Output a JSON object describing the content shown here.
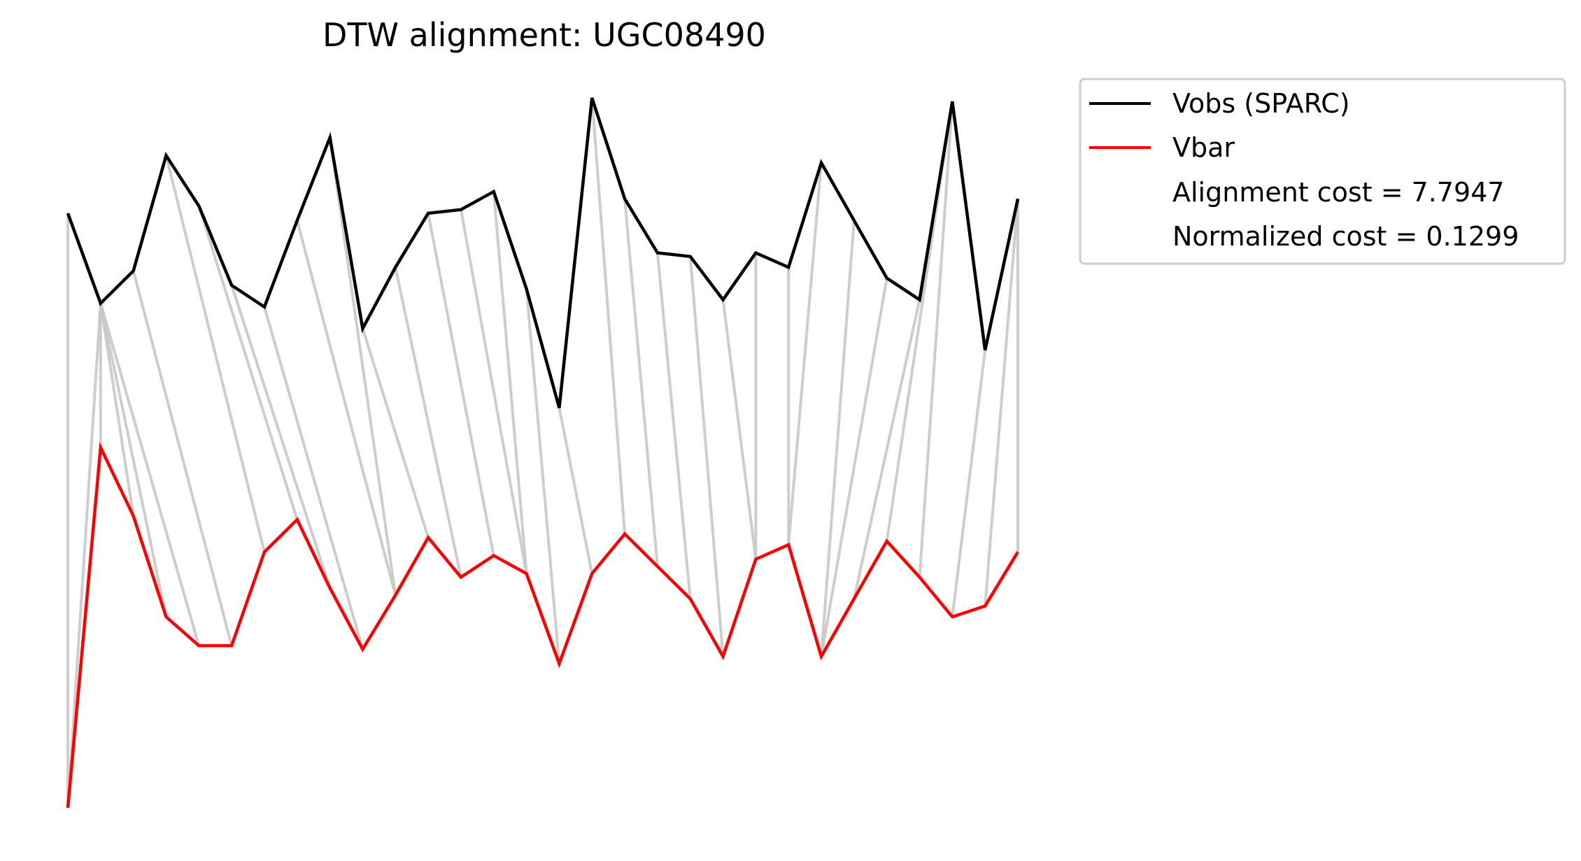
{
  "chart_data": {
    "type": "line",
    "title": "DTW alignment: UGC08490",
    "xlabel": "",
    "ylabel": "",
    "axes_visible": false,
    "grid": false,
    "legend_placement": "outside-top-right",
    "colors": {
      "vobs": "#000000",
      "vbar": "#ff0000",
      "connector": "#c8c8c8"
    },
    "series": [
      {
        "name": "Vobs (SPARC)",
        "x": [
          0,
          1,
          2,
          3,
          4,
          5,
          6,
          7,
          8,
          9,
          10,
          11,
          12,
          13,
          14,
          15,
          16,
          17,
          18,
          19,
          20,
          21,
          22,
          23,
          24,
          25,
          26,
          27,
          28,
          29
        ],
        "values": [
          0.83,
          0.58,
          0.67,
          0.99,
          0.85,
          0.63,
          0.57,
          0.81,
          1.04,
          0.51,
          0.68,
          0.83,
          0.84,
          0.89,
          0.62,
          0.29,
          1.15,
          0.87,
          0.72,
          0.71,
          0.59,
          0.72,
          0.68,
          0.97,
          0.81,
          0.65,
          0.59,
          1.14,
          0.45,
          0.87
        ]
      },
      {
        "name": "Vbar",
        "x": [
          0,
          1,
          2,
          3,
          4,
          5,
          6,
          7,
          8,
          9,
          10,
          11,
          12,
          13,
          14,
          15,
          16,
          17,
          18,
          19,
          20,
          21,
          22,
          23,
          24,
          25,
          26,
          27,
          28,
          29
        ],
        "values": [
          -0.82,
          0.18,
          -0.01,
          -0.29,
          -0.37,
          -0.37,
          -0.11,
          -0.02,
          -0.21,
          -0.38,
          -0.23,
          -0.07,
          -0.18,
          -0.12,
          -0.17,
          -0.42,
          -0.17,
          -0.06,
          -0.15,
          -0.24,
          -0.4,
          -0.13,
          -0.09,
          -0.4,
          -0.24,
          -0.08,
          -0.18,
          -0.29,
          -0.26,
          -0.11
        ]
      }
    ],
    "alignment_path": [
      [
        0,
        0
      ],
      [
        1,
        0
      ],
      [
        1,
        1
      ],
      [
        1,
        2
      ],
      [
        1,
        3
      ],
      [
        1,
        4
      ],
      [
        2,
        5
      ],
      [
        3,
        6
      ],
      [
        4,
        7
      ],
      [
        5,
        8
      ],
      [
        6,
        9
      ],
      [
        7,
        10
      ],
      [
        8,
        10
      ],
      [
        9,
        11
      ],
      [
        10,
        12
      ],
      [
        11,
        13
      ],
      [
        12,
        14
      ],
      [
        13,
        14
      ],
      [
        14,
        15
      ],
      [
        15,
        16
      ],
      [
        16,
        17
      ],
      [
        17,
        18
      ],
      [
        18,
        19
      ],
      [
        19,
        20
      ],
      [
        20,
        21
      ],
      [
        21,
        21
      ],
      [
        22,
        22
      ],
      [
        23,
        22
      ],
      [
        24,
        23
      ],
      [
        25,
        23
      ],
      [
        26,
        24
      ],
      [
        27,
        25
      ],
      [
        27,
        26
      ],
      [
        28,
        27
      ],
      [
        29,
        28
      ],
      [
        29,
        29
      ]
    ],
    "legend": [
      {
        "label": "Vobs (SPARC)",
        "kind": "line",
        "color": "#000000"
      },
      {
        "label": "Vbar",
        "kind": "line",
        "color": "#ff0000"
      },
      {
        "label": "Alignment cost = 7.7947",
        "kind": "text"
      },
      {
        "label": "Normalized cost = 0.1299",
        "kind": "text"
      }
    ]
  }
}
